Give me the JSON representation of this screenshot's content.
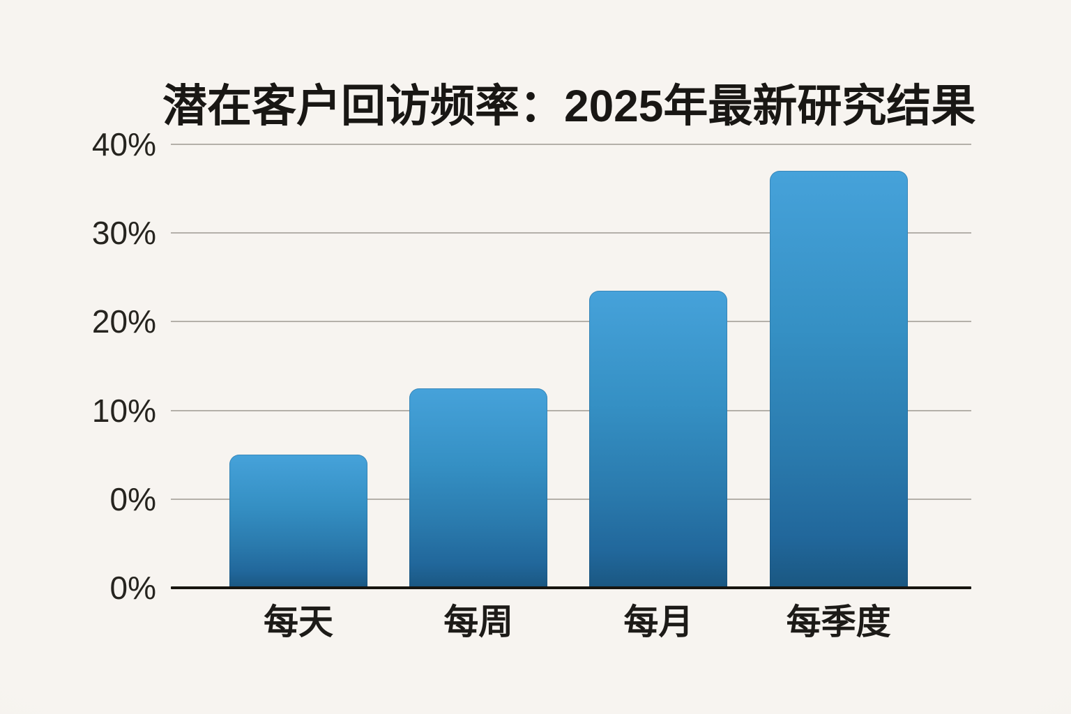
{
  "page": {
    "background_color": "#f6f3ee",
    "text_color": "#1d1b18"
  },
  "chart_data": {
    "type": "bar",
    "title": "潜在客户回访频率：2025年最新研究结果",
    "categories": [
      "每天",
      "每周",
      "每月",
      "每季度"
    ],
    "values": [
      5,
      12.5,
      23.5,
      37
    ],
    "value_unit": "%",
    "series_name": "潜在客户回访频率",
    "xlabel": "",
    "ylabel": "",
    "ylim": [
      0,
      40
    ],
    "y_tick_step": 10,
    "y_axis": {
      "tick_labels": [
        "40%",
        "30%",
        "20%",
        "10%",
        "0%",
        "0%"
      ],
      "note_duplicate_zero": "axis shows 0% twice (extra zero gridline above baseline)"
    },
    "grid": true,
    "legend": "none",
    "colors": {
      "bar_gradient_top": "#46a2da",
      "bar_gradient_mid": "#2e84b6",
      "bar_gradient_bottom": "#1a5781",
      "gridline": "#b4b0a9",
      "axis_line": "#17150f",
      "title_text": "#191714",
      "tick_text": "#26241f"
    }
  }
}
